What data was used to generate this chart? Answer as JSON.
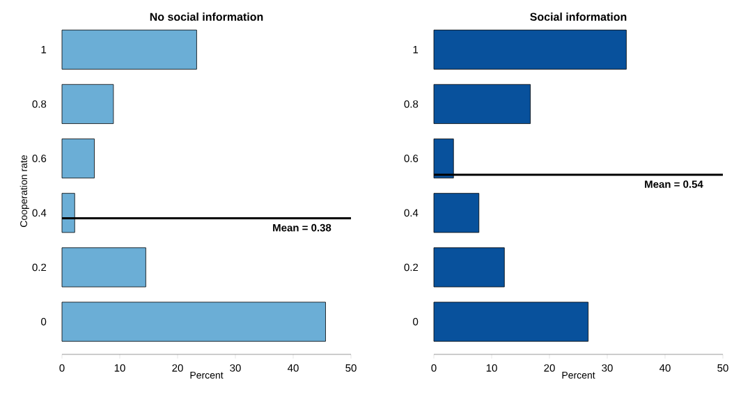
{
  "chart_data": [
    {
      "type": "bar",
      "orientation": "horizontal",
      "title": "No social information",
      "xlabel": "Percent",
      "ylabel": "Cooperation rate",
      "x": [
        0,
        0.2,
        0.4,
        0.6,
        0.8,
        1
      ],
      "values": [
        45.6,
        14.5,
        2.2,
        5.6,
        8.9,
        23.3
      ],
      "color": "#6baed6",
      "xlim": [
        0,
        50
      ],
      "xticks": [
        0,
        10,
        20,
        30,
        40,
        50
      ],
      "ylim": [
        -0.12,
        1.08
      ],
      "yticks": [
        0,
        0.2,
        0.4,
        0.6,
        0.8,
        1
      ],
      "ref_lines": [
        {
          "axis": "y",
          "value": 0.38,
          "label": "Mean =  0.38",
          "color": "#000000"
        }
      ]
    },
    {
      "type": "bar",
      "orientation": "horizontal",
      "title": "Social information",
      "xlabel": "Percent",
      "x": [
        0,
        0.2,
        0.4,
        0.6,
        0.8,
        1
      ],
      "values": [
        26.7,
        12.2,
        7.8,
        3.4,
        16.7,
        33.3
      ],
      "color": "#08519c",
      "xlim": [
        0,
        50
      ],
      "xticks": [
        0,
        10,
        20,
        30,
        40,
        50
      ],
      "ylim": [
        -0.12,
        1.08
      ],
      "yticks": [
        0,
        0.2,
        0.4,
        0.6,
        0.8,
        1
      ],
      "ref_lines": [
        {
          "axis": "y",
          "value": 0.54,
          "label": "Mean =  0.54",
          "color": "#000000"
        }
      ]
    }
  ]
}
